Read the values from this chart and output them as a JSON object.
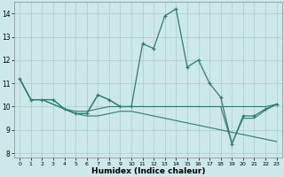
{
  "title": "",
  "xlabel": "Humidex (Indice chaleur)",
  "bg_color": "#cce8e8",
  "line_color": "#2e7d6e",
  "grid_color": "#aacccc",
  "xlim": [
    -0.5,
    23.5
  ],
  "ylim": [
    7.8,
    14.5
  ],
  "yticks": [
    8,
    9,
    10,
    11,
    12,
    13,
    14
  ],
  "xticks": [
    0,
    1,
    2,
    3,
    4,
    5,
    6,
    7,
    8,
    9,
    10,
    11,
    12,
    13,
    14,
    15,
    16,
    17,
    18,
    19,
    20,
    21,
    22,
    23
  ],
  "series0": [
    11.2,
    10.3,
    10.3,
    10.3,
    9.9,
    9.7,
    9.7,
    10.5,
    10.3,
    10.0,
    10.0,
    12.7,
    12.5,
    13.9,
    14.2,
    11.7,
    12.0,
    11.0,
    10.4,
    8.4,
    9.6,
    9.6,
    9.9,
    10.1
  ],
  "series1": [
    11.2,
    10.3,
    10.3,
    10.1,
    9.9,
    9.8,
    9.8,
    9.9,
    10.0,
    10.0,
    10.0,
    10.0,
    10.0,
    10.0,
    10.0,
    10.0,
    10.0,
    10.0,
    10.0,
    10.0,
    10.0,
    10.0,
    10.0,
    10.1
  ],
  "series2": [
    11.2,
    10.3,
    10.3,
    10.1,
    9.9,
    9.7,
    9.6,
    9.6,
    9.7,
    9.8,
    9.8,
    9.7,
    9.6,
    9.5,
    9.4,
    9.3,
    9.2,
    9.1,
    9.0,
    8.9,
    8.8,
    8.7,
    8.6,
    8.5
  ],
  "series3": [
    11.2,
    10.3,
    10.3,
    10.3,
    9.9,
    9.7,
    9.7,
    10.5,
    10.3,
    10.0,
    10.0,
    10.0,
    10.0,
    10.0,
    10.0,
    10.0,
    10.0,
    10.0,
    10.0,
    8.4,
    9.5,
    9.5,
    9.85,
    10.1
  ]
}
